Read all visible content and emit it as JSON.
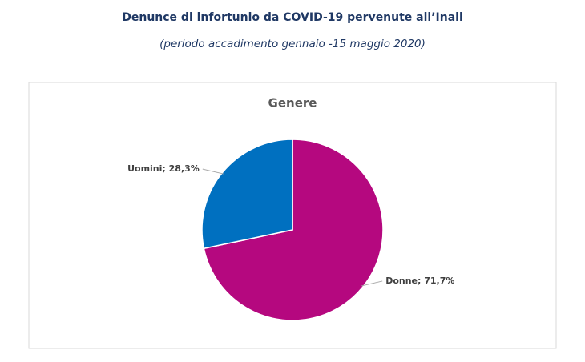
{
  "chart_data": {
    "type": "pie",
    "title": "Denunce di infortunio da COVID-19 pervenute all’Inail",
    "subtitle": "(periodo accadimento gennaio -15 maggio 2020)",
    "chart_title": "Genere",
    "values": [
      71.7,
      28.3
    ],
    "value_labels": [
      "Donne; 71,7%",
      "Uomini; 28,3%"
    ],
    "colors": [
      "#b5087f",
      "#0070c0"
    ]
  }
}
